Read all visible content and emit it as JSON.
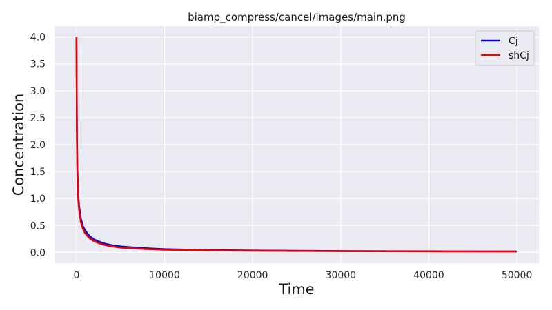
{
  "chart_data": {
    "type": "line",
    "title": "biamp_compress/cancel/images/main.png",
    "xlabel": "Time",
    "ylabel": "Concentration",
    "xlim": [
      -2500,
      52500
    ],
    "ylim": [
      -0.2,
      4.2
    ],
    "xticks": [
      0,
      10000,
      20000,
      30000,
      40000,
      50000
    ],
    "yticks": [
      0.0,
      0.5,
      1.0,
      1.5,
      2.0,
      2.5,
      3.0,
      3.5,
      4.0
    ],
    "xtick_labels": [
      "0",
      "10000",
      "20000",
      "30000",
      "40000",
      "50000"
    ],
    "ytick_labels": [
      "0.0",
      "0.5",
      "1.0",
      "1.5",
      "2.0",
      "2.5",
      "3.0",
      "3.5",
      "4.0"
    ],
    "grid": true,
    "legend_position": "top-right",
    "background": "#eaeaf2",
    "series": [
      {
        "name": "Cj",
        "color": "#0000dd",
        "x": [
          0,
          20,
          50,
          100,
          200,
          300,
          500,
          750,
          1000,
          1500,
          2000,
          3000,
          4000,
          5000,
          7500,
          10000,
          15000,
          20000,
          30000,
          40000,
          50000
        ],
        "y": [
          4.0,
          3.2,
          2.2,
          1.55,
          1.05,
          0.85,
          0.62,
          0.48,
          0.4,
          0.3,
          0.24,
          0.17,
          0.135,
          0.11,
          0.08,
          0.06,
          0.045,
          0.035,
          0.025,
          0.02,
          0.018
        ]
      },
      {
        "name": "shCj",
        "color": "#ee0000",
        "x": [
          0,
          20,
          50,
          100,
          200,
          300,
          500,
          750,
          1000,
          1500,
          2000,
          3000,
          4000,
          5000,
          7500,
          10000,
          15000,
          20000,
          30000,
          40000,
          50000
        ],
        "y": [
          4.0,
          3.1,
          2.1,
          1.45,
          0.97,
          0.78,
          0.56,
          0.43,
          0.35,
          0.26,
          0.205,
          0.145,
          0.11,
          0.09,
          0.065,
          0.05,
          0.038,
          0.03,
          0.022,
          0.018,
          0.016
        ]
      }
    ]
  }
}
